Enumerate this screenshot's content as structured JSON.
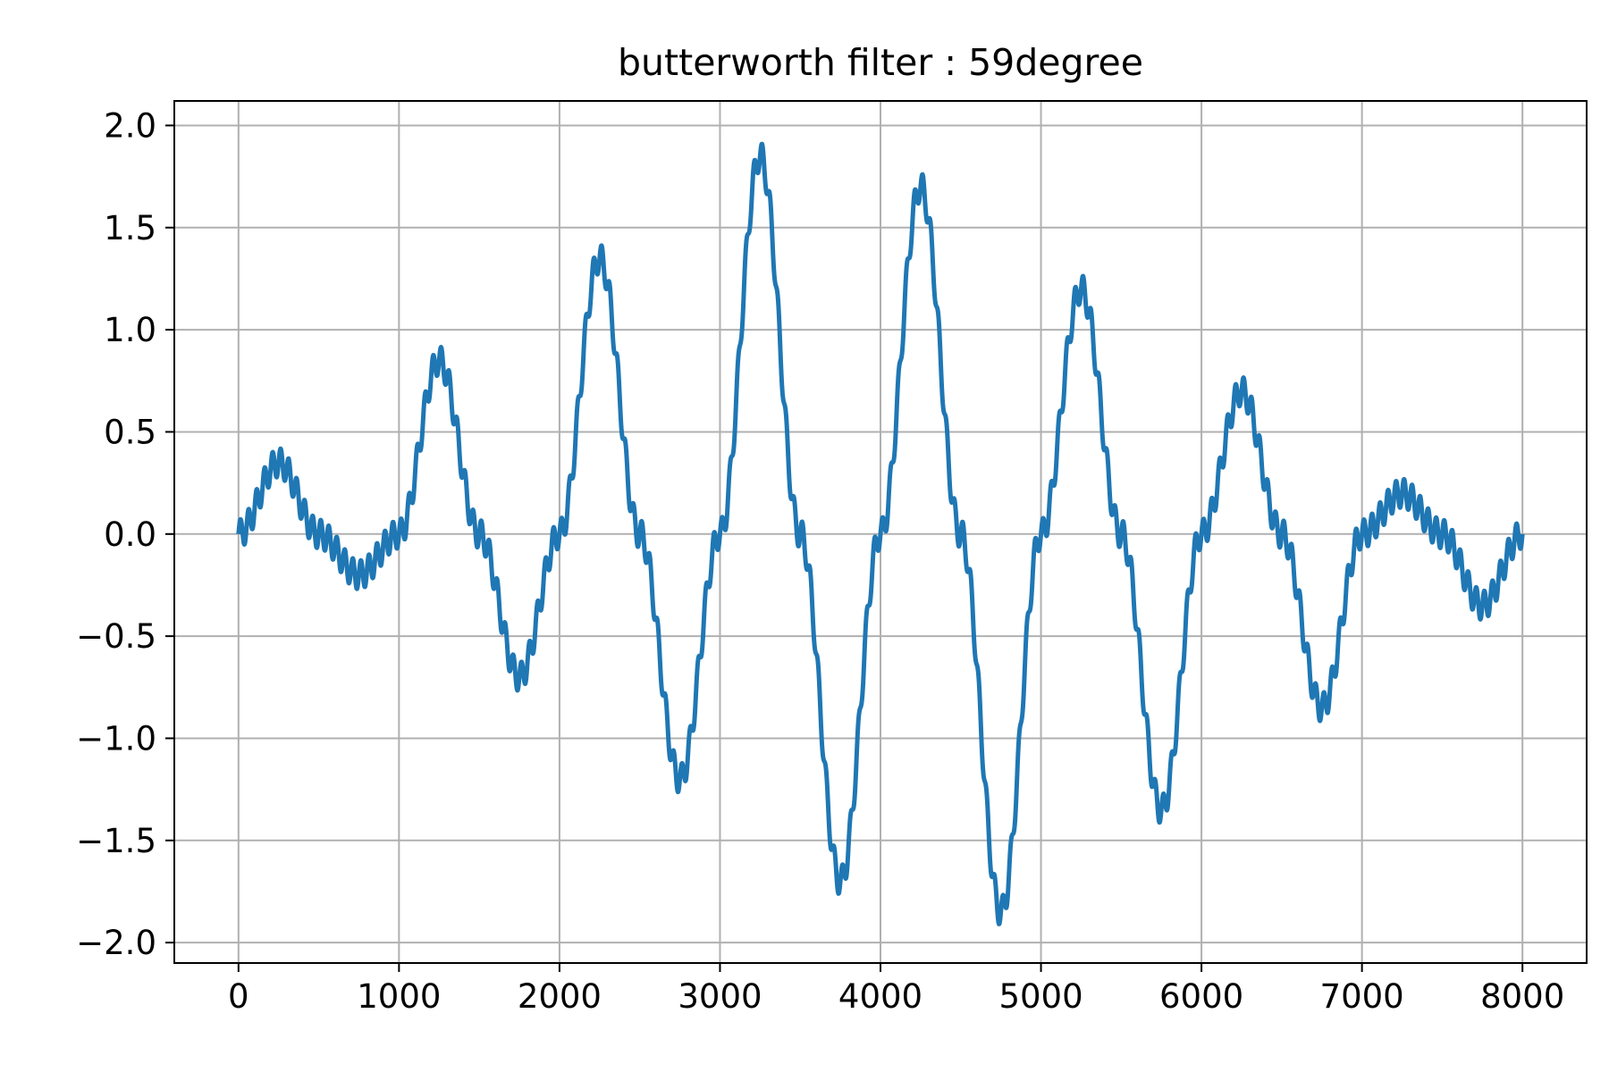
{
  "chart_data": {
    "type": "line",
    "title": "butterworth filter : 59degree",
    "xlabel": "",
    "ylabel": "",
    "xlim": [
      -400,
      8400
    ],
    "ylim": [
      -2.1,
      2.12
    ],
    "x_ticks": [
      0,
      1000,
      2000,
      3000,
      4000,
      5000,
      6000,
      7000,
      8000
    ],
    "x_tick_labels": [
      "0",
      "1000",
      "2000",
      "3000",
      "4000",
      "5000",
      "6000",
      "7000",
      "8000"
    ],
    "y_ticks": [
      2.0,
      1.5,
      1.0,
      0.5,
      0.0,
      -0.5,
      -1.0,
      -1.5,
      -2.0
    ],
    "y_tick_labels": [
      "2.0",
      "1.5",
      "1.0",
      "0.5",
      "0.0",
      "−0.5",
      "−1.0",
      "−1.5",
      "−2.0"
    ],
    "grid": true,
    "line_color": "#1f77b4",
    "x": [
      0,
      250,
      500,
      750,
      1000,
      1250,
      1500,
      1750,
      2000,
      2250,
      2500,
      2750,
      3000,
      3250,
      3500,
      3750,
      4000,
      4250,
      4500,
      4750,
      5000,
      5250,
      5500,
      5750,
      6000,
      6250,
      6500,
      6750,
      7000,
      7250,
      7500,
      7750,
      8000
    ],
    "y": [
      0.0,
      0.35,
      0.0,
      -0.2,
      0.0,
      0.85,
      0.0,
      -0.7,
      0.0,
      1.35,
      0.0,
      -1.2,
      0.0,
      1.85,
      0.0,
      -1.7,
      0.0,
      1.7,
      0.0,
      -1.85,
      0.0,
      1.2,
      0.0,
      -1.35,
      0.0,
      0.7,
      0.0,
      -0.85,
      0.0,
      0.2,
      0.0,
      -0.35,
      0.0
    ],
    "ripple": {
      "amplitude": 0.07,
      "period": 50
    }
  }
}
